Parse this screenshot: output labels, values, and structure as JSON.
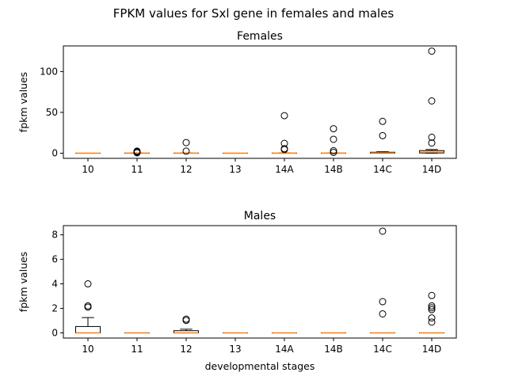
{
  "figure": {
    "suptitle": "FPKM values for Sxl gene in females and males"
  },
  "colors": {
    "median": "#ff7f0e",
    "box": "#000000",
    "flier": "#000000",
    "axis": "#000000",
    "background": "#ffffff"
  },
  "chart_data": [
    {
      "type": "box",
      "title": "Females",
      "xlabel": "",
      "ylabel": "fpkm values",
      "categories": [
        "10",
        "11",
        "12",
        "13",
        "14A",
        "14B",
        "14C",
        "14D"
      ],
      "ylim": [
        -6.3,
        131.4
      ],
      "yticks": [
        0,
        50,
        100
      ],
      "boxes": [
        {
          "min": 0,
          "q1": 0,
          "median": 0,
          "q3": 0,
          "max": 0,
          "fliers": []
        },
        {
          "min": 0,
          "q1": 0,
          "median": 0,
          "q3": 0.1,
          "max": 0.2,
          "fliers": [
            0.5,
            1.0,
            1.8,
            2.5
          ]
        },
        {
          "min": 0,
          "q1": 0,
          "median": 0,
          "q3": 0.1,
          "max": 0.2,
          "fliers": [
            2.5,
            13
          ]
        },
        {
          "min": 0,
          "q1": 0,
          "median": 0,
          "q3": 0,
          "max": 0,
          "fliers": []
        },
        {
          "min": 0,
          "q1": 0,
          "median": 0,
          "q3": 0.1,
          "max": 0.2,
          "fliers": [
            4.5,
            5.5,
            12,
            46
          ]
        },
        {
          "min": 0,
          "q1": 0,
          "median": 0,
          "q3": 0.1,
          "max": 0.2,
          "fliers": [
            1,
            3,
            17,
            30
          ]
        },
        {
          "min": 0,
          "q1": 0,
          "median": 0.5,
          "q3": 1.2,
          "max": 1.8,
          "fliers": [
            21.5,
            39
          ]
        },
        {
          "min": 0,
          "q1": 0.3,
          "median": 1.2,
          "q3": 3.2,
          "max": 4.5,
          "fliers": [
            12.5,
            19.5,
            64,
            125
          ]
        }
      ]
    },
    {
      "type": "box",
      "title": "Males",
      "xlabel": "developmental stages",
      "ylabel": "fpkm values",
      "categories": [
        "10",
        "11",
        "12",
        "13",
        "14A",
        "14B",
        "14C",
        "14D"
      ],
      "ylim": [
        -0.42,
        8.75
      ],
      "yticks": [
        0,
        2,
        4,
        6,
        8
      ],
      "boxes": [
        {
          "min": 0,
          "q1": 0,
          "median": 0,
          "q3": 0.52,
          "max": 1.25,
          "fliers": [
            2.1,
            2.2,
            4.0
          ]
        },
        {
          "min": 0,
          "q1": 0,
          "median": 0,
          "q3": 0,
          "max": 0,
          "fliers": []
        },
        {
          "min": 0,
          "q1": 0,
          "median": 0,
          "q3": 0.18,
          "max": 0.3,
          "fliers": [
            1.02,
            1.12
          ]
        },
        {
          "min": 0,
          "q1": 0,
          "median": 0,
          "q3": 0,
          "max": 0,
          "fliers": []
        },
        {
          "min": 0,
          "q1": 0,
          "median": 0,
          "q3": 0,
          "max": 0,
          "fliers": []
        },
        {
          "min": 0,
          "q1": 0,
          "median": 0,
          "q3": 0,
          "max": 0,
          "fliers": []
        },
        {
          "min": 0,
          "q1": 0,
          "median": 0,
          "q3": 0,
          "max": 0,
          "fliers": [
            1.55,
            2.55,
            8.3
          ]
        },
        {
          "min": 0,
          "q1": 0,
          "median": 0,
          "q3": 0,
          "max": 0,
          "fliers": [
            0.88,
            1.22,
            1.9,
            2.05,
            2.2,
            3.05
          ]
        }
      ]
    }
  ]
}
